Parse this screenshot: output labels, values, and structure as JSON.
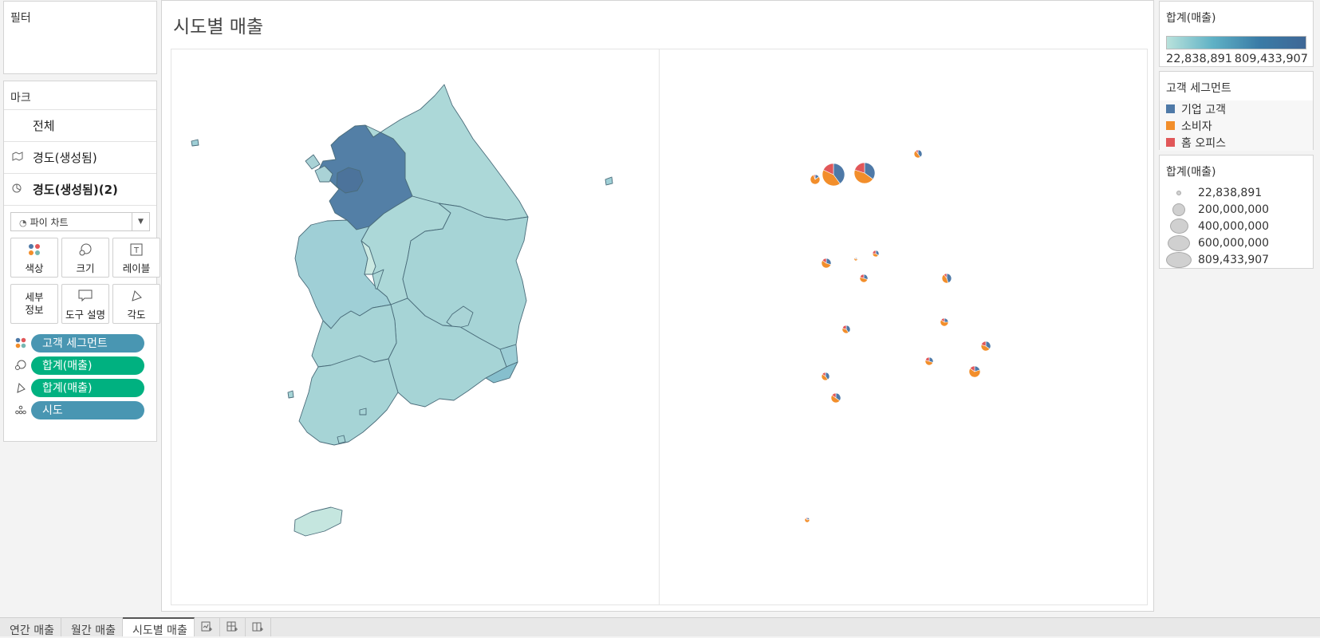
{
  "filters": {
    "title": "필터"
  },
  "marks": {
    "title": "마크",
    "layers": [
      {
        "label": "전체",
        "icon": "none"
      },
      {
        "label": "경도(생성됨)",
        "icon": "map-icon"
      },
      {
        "label": "경도(생성됨)(2)",
        "icon": "pie-icon"
      }
    ],
    "mark_type": "파이 차트",
    "cards": [
      {
        "label": "색상",
        "icon": "color-icon"
      },
      {
        "label": "크기",
        "icon": "size-icon"
      },
      {
        "label": "레이블",
        "icon": "label-icon"
      },
      {
        "label": "세부\n정보",
        "icon": "detail-icon"
      },
      {
        "label": "도구 설명",
        "icon": "tooltip-icon"
      },
      {
        "label": "각도",
        "icon": "angle-icon"
      }
    ],
    "pills": [
      {
        "label": "고객 세그먼트",
        "icon": "color-icon",
        "color": "#4996b2"
      },
      {
        "label": "합계(매출)",
        "icon": "size-icon",
        "color": "#00b180"
      },
      {
        "label": "합계(매출)",
        "icon": "angle-icon",
        "color": "#00b180"
      },
      {
        "label": "시도",
        "icon": "detail-icon",
        "color": "#4996b2"
      }
    ]
  },
  "worksheet": {
    "title": "시도별 매출"
  },
  "legend_color": {
    "title": "합계(매출)",
    "min_label": "22,838,891",
    "max_label": "809,433,907",
    "colors": [
      "#b9e2dc",
      "#3f6796"
    ]
  },
  "legend_segment": {
    "title": "고객 세그먼트",
    "items": [
      {
        "label": "기업 고객",
        "color": "#4e79a7"
      },
      {
        "label": "소비자",
        "color": "#f28e2b"
      },
      {
        "label": "홈 오피스",
        "color": "#e15759"
      }
    ]
  },
  "legend_size": {
    "title": "합계(매출)",
    "items": [
      {
        "label": "22,838,891",
        "value": 22838891
      },
      {
        "label": "200,000,000",
        "value": 200000000
      },
      {
        "label": "400,000,000",
        "value": 400000000
      },
      {
        "label": "600,000,000",
        "value": 600000000
      },
      {
        "label": "809,433,907",
        "value": 809433907
      }
    ]
  },
  "tabs": [
    {
      "label": "연간 매출",
      "active": false
    },
    {
      "label": "월간 매출",
      "active": false
    },
    {
      "label": "시도별 매출",
      "active": true
    }
  ],
  "tab_icons": [
    "new-worksheet-icon",
    "new-dashboard-icon",
    "new-story-icon"
  ],
  "pies": [
    {
      "share": [
        0.4,
        0.42,
        0.18
      ]
    },
    {
      "share": [
        0.35,
        0.45,
        0.2
      ]
    },
    {
      "share": [
        0.15,
        0.8,
        0.05
      ]
    },
    {
      "share": [
        0.4,
        0.5,
        0.1
      ]
    },
    {
      "share": [
        0.3,
        0.55,
        0.15
      ]
    },
    {
      "share": [
        0.2,
        0.7,
        0.1
      ]
    },
    {
      "share": [
        0.35,
        0.4,
        0.25
      ]
    },
    {
      "share": [
        0.3,
        0.5,
        0.2
      ]
    },
    {
      "share": [
        0.45,
        0.45,
        0.1
      ]
    },
    {
      "share": [
        0.4,
        0.4,
        0.2
      ]
    },
    {
      "share": [
        0.25,
        0.6,
        0.15
      ]
    },
    {
      "share": [
        0.35,
        0.45,
        0.2
      ]
    },
    {
      "share": [
        0.3,
        0.5,
        0.2
      ]
    },
    {
      "share": [
        0.2,
        0.65,
        0.15
      ]
    },
    {
      "share": [
        0.4,
        0.45,
        0.15
      ]
    },
    {
      "share": [
        0.35,
        0.5,
        0.15
      ]
    },
    {
      "share": [
        0.2,
        0.7,
        0.1
      ]
    }
  ]
}
